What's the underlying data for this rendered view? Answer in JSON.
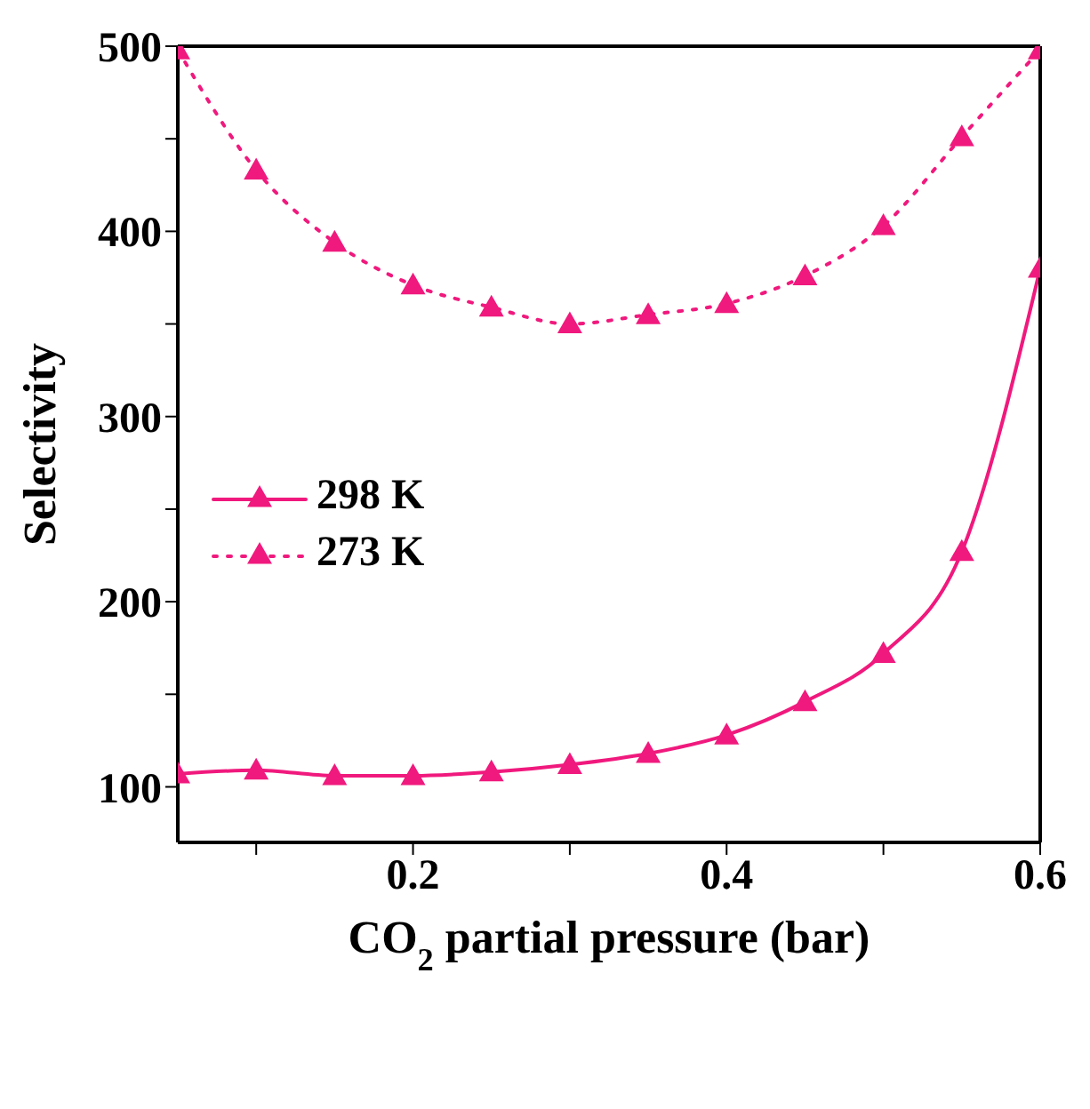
{
  "chart_data": {
    "type": "line",
    "xlabel": "CO$_{2}$ partial pressure (bar)",
    "ylabel": "Selectivity",
    "x": [
      0.05,
      0.1,
      0.15,
      0.2,
      0.25,
      0.3,
      0.35,
      0.4,
      0.45,
      0.5,
      0.55,
      0.6
    ],
    "series": [
      {
        "name": "298 K",
        "color": "#f0197d",
        "line_style": "solid",
        "values": [
          107,
          109,
          106,
          106,
          108,
          112,
          118,
          128,
          146,
          172,
          227,
          380
        ]
      },
      {
        "name": "273 K",
        "color": "#f0197d",
        "line_style": "dotted",
        "values": [
          498,
          433,
          394,
          371,
          359,
          350,
          355,
          361,
          376,
          403,
          451,
          498
        ]
      }
    ],
    "xlim": [
      0.05,
      0.6
    ],
    "xticks": [
      {
        "value": 0.1,
        "label": null
      },
      0.2,
      {
        "value": 0.3,
        "label": null
      },
      0.4,
      {
        "value": 0.5,
        "label": null
      },
      0.6
    ],
    "ylim": [
      70,
      500
    ],
    "yticks": [
      100,
      {
        "value": 150,
        "label": null
      },
      200,
      {
        "value": 250,
        "label": null
      },
      300,
      {
        "value": 350,
        "label": null
      },
      400,
      {
        "value": 450,
        "label": null
      },
      500
    ],
    "marker": "triangle",
    "legend": "left",
    "grid": false
  }
}
